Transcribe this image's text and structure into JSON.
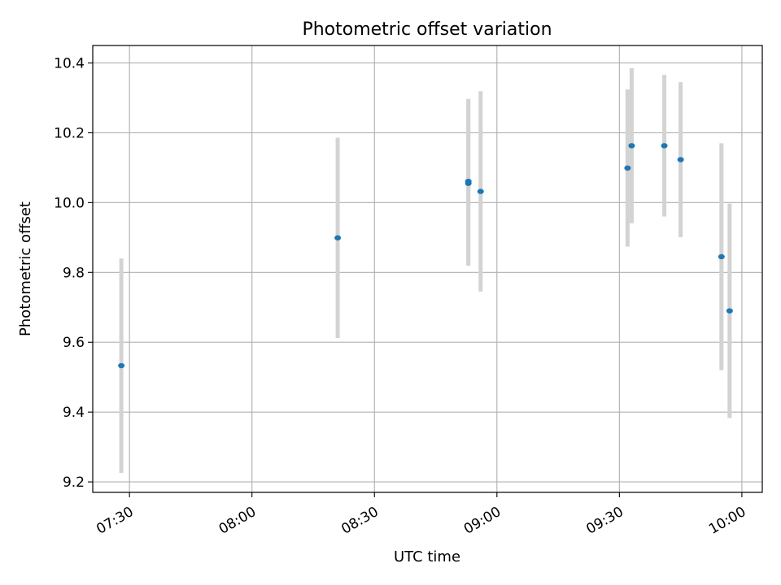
{
  "chart_data": {
    "type": "scatter",
    "title": "Photometric offset variation",
    "xlabel": "UTC time",
    "ylabel": "Photometric offset",
    "x_ticks": [
      "07:30",
      "08:00",
      "08:30",
      "09:00",
      "09:30",
      "10:00"
    ],
    "y_ticks": [
      "9.2",
      "9.4",
      "9.6",
      "9.8",
      "10.0",
      "10.2",
      "10.4"
    ],
    "xlim": [
      "07:21",
      "10:05"
    ],
    "ylim": [
      9.17,
      10.45
    ],
    "grid": true,
    "marker_color": "#1f77b4",
    "errorbar_color": "#d3d3d3",
    "points": [
      {
        "time": "07:28",
        "y": 9.533,
        "yerr": 0.307
      },
      {
        "time": "08:21",
        "y": 9.899,
        "yerr": 0.287
      },
      {
        "time": "08:53",
        "y": 10.055,
        "yerr": 0.236
      },
      {
        "time": "08:53",
        "y": 10.061,
        "yerr": 0.236
      },
      {
        "time": "08:56",
        "y": 10.032,
        "yerr": 0.287
      },
      {
        "time": "09:32",
        "y": 10.099,
        "yerr": 0.225
      },
      {
        "time": "09:33",
        "y": 10.163,
        "yerr": 0.222
      },
      {
        "time": "09:41",
        "y": 10.163,
        "yerr": 0.203
      },
      {
        "time": "09:45",
        "y": 10.123,
        "yerr": 0.222
      },
      {
        "time": "09:55",
        "y": 9.845,
        "yerr": 0.325
      },
      {
        "time": "09:57",
        "y": 9.69,
        "yerr": 0.307
      }
    ]
  }
}
